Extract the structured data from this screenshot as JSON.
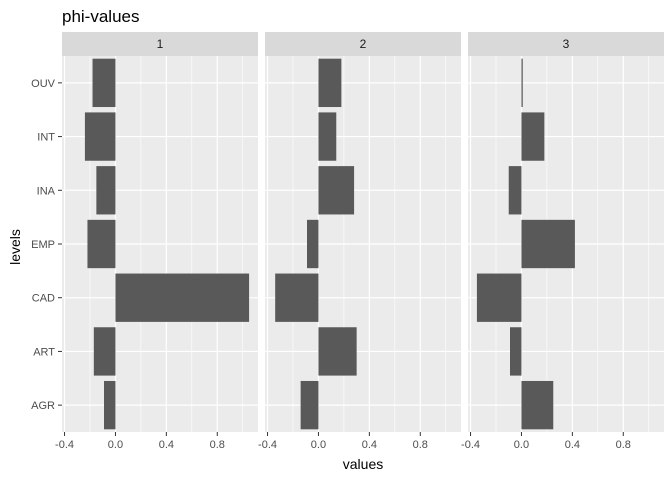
{
  "chart_data": {
    "type": "bar",
    "orientation": "horizontal",
    "title": "phi-values",
    "xlabel": "values",
    "ylabel": "levels",
    "xlim": [
      -0.42,
      1.12
    ],
    "x_ticks": [
      -0.4,
      0.0,
      0.4,
      0.8
    ],
    "x_tick_labels": [
      "-0.4",
      "0.0",
      "0.4",
      "0.8"
    ],
    "categories": [
      "AGR",
      "ART",
      "CAD",
      "EMP",
      "INA",
      "INT",
      "OUV"
    ],
    "facets": [
      "1",
      "2",
      "3"
    ],
    "bar_color": "#595959",
    "panel_background": "#ebebeb",
    "strip_background": "#d9d9d9",
    "grid_color": "#ffffff",
    "grid": true,
    "series": [
      {
        "facet": "1",
        "values": [
          -0.09,
          -0.17,
          1.05,
          -0.22,
          -0.15,
          -0.24,
          -0.18
        ]
      },
      {
        "facet": "2",
        "values": [
          -0.14,
          0.3,
          -0.34,
          -0.09,
          0.28,
          0.14,
          0.18
        ]
      },
      {
        "facet": "3",
        "values": [
          0.25,
          -0.09,
          -0.35,
          0.42,
          -0.1,
          0.18,
          0.01
        ]
      }
    ]
  }
}
